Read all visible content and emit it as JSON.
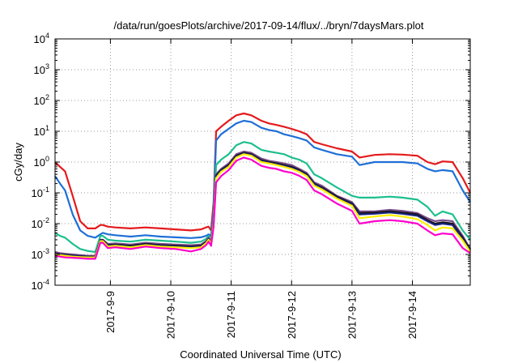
{
  "chart_data": {
    "type": "line",
    "title": "/data/run/goesPlots/archive/2017-09-14/flux/../bryn/7daysMars.plot",
    "xlabel": "Coordinated Universal Time (UTC)",
    "ylabel": "cGy/day",
    "yscale": "log",
    "ylim": [
      0.0001,
      10000
    ],
    "xlim": [
      "2017-09-08T02:00",
      "2017-09-14T23:00"
    ],
    "grid": true,
    "legend": "none",
    "y_ticks": [
      {
        "value": 0.0001,
        "base": "10",
        "exp": "-4"
      },
      {
        "value": 0.001,
        "base": "10",
        "exp": "-3"
      },
      {
        "value": 0.01,
        "base": "10",
        "exp": "-2"
      },
      {
        "value": 0.1,
        "base": "10",
        "exp": "-1"
      },
      {
        "value": 1,
        "base": "10",
        "exp": "0"
      },
      {
        "value": 10,
        "base": "10",
        "exp": "1"
      },
      {
        "value": 100,
        "base": "10",
        "exp": "2"
      },
      {
        "value": 1000,
        "base": "10",
        "exp": "3"
      },
      {
        "value": 10000,
        "base": "10",
        "exp": "4"
      }
    ],
    "x_ticks": [
      {
        "date": "2017-09-09T00:00",
        "label": "2017-9-9"
      },
      {
        "date": "2017-09-10T00:00",
        "label": "2017-9-10"
      },
      {
        "date": "2017-09-11T00:00",
        "label": "2017-9-11"
      },
      {
        "date": "2017-09-12T00:00",
        "label": "2017-9-12"
      },
      {
        "date": "2017-09-13T00:00",
        "label": "2017-9-13"
      },
      {
        "date": "2017-09-14T00:00",
        "label": "2017-9-14"
      }
    ],
    "x": [
      "2017-09-08T02:00",
      "2017-09-08T04:00",
      "2017-09-08T06:00",
      "2017-09-08T09:00",
      "2017-09-08T12:00",
      "2017-09-08T15:00",
      "2017-09-08T18:00",
      "2017-09-08T20:00",
      "2017-09-08T21:00",
      "2017-09-08T23:00",
      "2017-09-09T02:00",
      "2017-09-09T08:00",
      "2017-09-09T14:00",
      "2017-09-09T20:00",
      "2017-09-10T02:00",
      "2017-09-10T08:00",
      "2017-09-10T12:00",
      "2017-09-10T14:00",
      "2017-09-10T15:00",
      "2017-09-10T16:00",
      "2017-09-10T17:00",
      "2017-09-10T18:00",
      "2017-09-10T20:00",
      "2017-09-10T23:00",
      "2017-09-11T02:00",
      "2017-09-11T05:00",
      "2017-09-11T08:00",
      "2017-09-11T12:00",
      "2017-09-11T15:00",
      "2017-09-11T18:00",
      "2017-09-11T21:00",
      "2017-09-12T00:00",
      "2017-09-12T03:00",
      "2017-09-12T06:00",
      "2017-09-12T09:00",
      "2017-09-12T12:00",
      "2017-09-12T18:00",
      "2017-09-13T00:00",
      "2017-09-13T03:00",
      "2017-09-13T09:00",
      "2017-09-13T15:00",
      "2017-09-13T20:00",
      "2017-09-14T02:00",
      "2017-09-14T06:00",
      "2017-09-14T09:00",
      "2017-09-14T12:00",
      "2017-09-14T16:00",
      "2017-09-14T20:00",
      "2017-09-14T23:00"
    ],
    "series": [
      {
        "color": "#e41a1c",
        "values": [
          1.0,
          0.7,
          0.5,
          0.08,
          0.012,
          0.007,
          0.007,
          0.009,
          0.009,
          0.008,
          0.0075,
          0.007,
          0.0075,
          0.007,
          0.0065,
          0.006,
          0.0065,
          0.0075,
          0.008,
          0.006,
          0.05,
          10,
          14,
          22,
          33,
          38,
          33,
          22,
          18,
          16,
          14,
          12,
          10,
          8,
          4.5,
          3.8,
          2.8,
          2.2,
          1.4,
          1.7,
          1.8,
          1.75,
          1.6,
          1.0,
          0.85,
          1.05,
          1.0,
          0.3,
          0.1
        ]
      },
      {
        "color": "#1f6fd6",
        "values": [
          0.35,
          0.2,
          0.12,
          0.02,
          0.006,
          0.004,
          0.0035,
          0.0045,
          0.005,
          0.0045,
          0.0042,
          0.0038,
          0.0042,
          0.0038,
          0.0036,
          0.0034,
          0.0036,
          0.004,
          0.0045,
          0.004,
          0.03,
          5,
          8,
          12,
          18,
          22,
          20,
          13,
          11,
          10,
          8,
          7,
          6,
          5,
          3,
          2.5,
          1.8,
          1.5,
          0.8,
          1.0,
          1.0,
          1.0,
          0.9,
          0.6,
          0.5,
          0.55,
          0.5,
          0.12,
          0.05
        ]
      },
      {
        "color": "#1dbf8f",
        "values": [
          0.005,
          0.004,
          0.0035,
          0.0022,
          0.0015,
          0.0013,
          0.0012,
          0.004,
          0.004,
          0.003,
          0.0028,
          0.0026,
          0.003,
          0.0028,
          0.0026,
          0.0024,
          0.0026,
          0.0032,
          0.004,
          0.003,
          0.015,
          0.8,
          1.2,
          1.8,
          3.5,
          4.5,
          4.0,
          2.5,
          2.2,
          2.0,
          1.8,
          1.4,
          1.2,
          0.9,
          0.4,
          0.3,
          0.15,
          0.08,
          0.07,
          0.07,
          0.075,
          0.07,
          0.06,
          0.035,
          0.018,
          0.025,
          0.02,
          0.006,
          0.003
        ]
      },
      {
        "color": "#7a4e8c",
        "values": [
          0.0012,
          0.0011,
          0.00105,
          0.001,
          0.00095,
          0.0009,
          0.0009,
          0.003,
          0.003,
          0.0022,
          0.0023,
          0.0021,
          0.0024,
          0.0022,
          0.0021,
          0.002,
          0.0021,
          0.0027,
          0.0035,
          0.0026,
          0.012,
          0.4,
          0.6,
          0.9,
          1.8,
          2.2,
          2.0,
          1.3,
          1.1,
          1.0,
          0.9,
          0.8,
          0.6,
          0.45,
          0.22,
          0.17,
          0.08,
          0.05,
          0.025,
          0.025,
          0.028,
          0.026,
          0.022,
          0.015,
          0.012,
          0.013,
          0.012,
          0.004,
          0.0015
        ]
      },
      {
        "color": "#111111",
        "values": [
          0.0011,
          0.001,
          0.00098,
          0.00092,
          0.00088,
          0.00085,
          0.00085,
          0.0029,
          0.0029,
          0.002,
          0.0021,
          0.0019,
          0.0022,
          0.002,
          0.0019,
          0.0018,
          0.0019,
          0.0025,
          0.0032,
          0.0024,
          0.011,
          0.36,
          0.55,
          0.8,
          1.6,
          2.0,
          1.8,
          1.15,
          1.0,
          0.9,
          0.8,
          0.7,
          0.55,
          0.4,
          0.2,
          0.15,
          0.075,
          0.045,
          0.022,
          0.023,
          0.025,
          0.023,
          0.02,
          0.013,
          0.01,
          0.011,
          0.01,
          0.0035,
          0.0014
        ]
      },
      {
        "color": "#1a237e",
        "values": [
          0.00105,
          0.00098,
          0.00095,
          0.0009,
          0.00086,
          0.00083,
          0.00083,
          0.0028,
          0.0028,
          0.0019,
          0.002,
          0.0018,
          0.0021,
          0.0019,
          0.0018,
          0.0017,
          0.0018,
          0.0024,
          0.0031,
          0.0023,
          0.0105,
          0.34,
          0.52,
          0.75,
          1.5,
          1.9,
          1.7,
          1.1,
          0.95,
          0.85,
          0.75,
          0.65,
          0.52,
          0.38,
          0.19,
          0.14,
          0.07,
          0.042,
          0.02,
          0.021,
          0.023,
          0.021,
          0.018,
          0.012,
          0.009,
          0.01,
          0.009,
          0.0032,
          0.0013
        ]
      },
      {
        "color": "#ffee00",
        "values": [
          0.001,
          0.00095,
          0.0009,
          0.00085,
          0.00082,
          0.0008,
          0.0008,
          0.0027,
          0.0027,
          0.0018,
          0.0019,
          0.0017,
          0.002,
          0.0018,
          0.0017,
          0.0016,
          0.0017,
          0.0023,
          0.003,
          0.0022,
          0.01,
          0.3,
          0.48,
          0.7,
          1.4,
          1.8,
          1.6,
          1.0,
          0.9,
          0.8,
          0.7,
          0.6,
          0.48,
          0.35,
          0.17,
          0.13,
          0.065,
          0.038,
          0.015,
          0.017,
          0.019,
          0.017,
          0.014,
          0.009,
          0.006,
          0.0075,
          0.007,
          0.0028,
          0.0012
        ]
      },
      {
        "color": "#ff00cc",
        "values": [
          0.0009,
          0.00085,
          0.0008,
          0.00078,
          0.00075,
          0.00072,
          0.00072,
          0.0024,
          0.0024,
          0.0016,
          0.0017,
          0.0015,
          0.0018,
          0.0016,
          0.0015,
          0.00125,
          0.0015,
          0.002,
          0.0026,
          0.0019,
          0.008,
          0.22,
          0.35,
          0.55,
          1.1,
          1.4,
          1.2,
          0.75,
          0.65,
          0.6,
          0.5,
          0.45,
          0.36,
          0.26,
          0.12,
          0.09,
          0.045,
          0.026,
          0.01,
          0.012,
          0.013,
          0.012,
          0.01,
          0.006,
          0.0042,
          0.0048,
          0.0045,
          0.0016,
          0.0011
        ]
      }
    ]
  }
}
